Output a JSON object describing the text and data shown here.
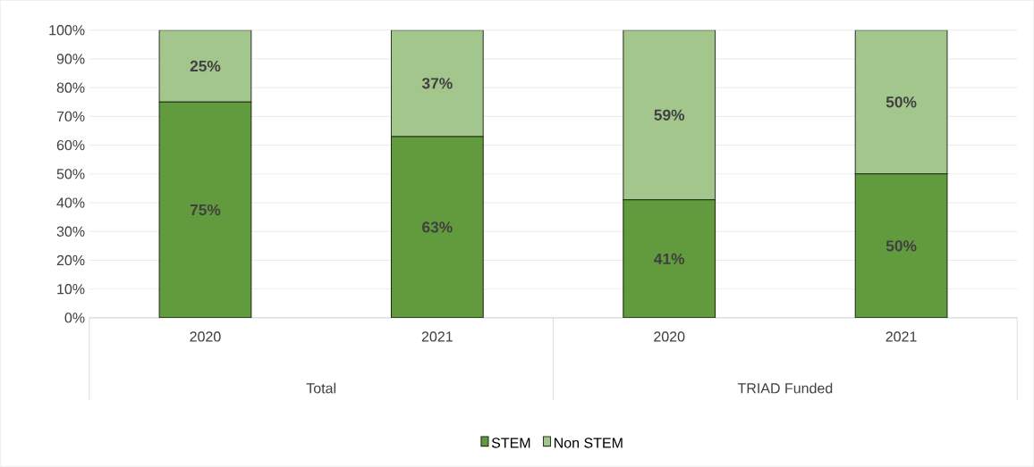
{
  "chart_data": {
    "type": "bar",
    "stacked": true,
    "categories": [
      "2020",
      "2021",
      "2020",
      "2021"
    ],
    "annotations": [
      "Total",
      "TRIAD Funded"
    ],
    "series": [
      {
        "name": "STEM",
        "color": "#629b3e",
        "values": [
          75,
          63,
          41,
          50
        ],
        "value_labels": [
          "75%",
          "63%",
          "41%",
          "50%"
        ]
      },
      {
        "name": "Non STEM",
        "color": "#a3c68d",
        "values": [
          25,
          37,
          59,
          50
        ],
        "value_labels": [
          "25%",
          "37%",
          "59%",
          "50%"
        ]
      }
    ],
    "ylim": [
      0,
      100
    ],
    "yticks": [
      {
        "value": 0,
        "label": "0%"
      },
      {
        "value": 10,
        "label": "10%"
      },
      {
        "value": 20,
        "label": "20%"
      },
      {
        "value": 30,
        "label": "30%"
      },
      {
        "value": 40,
        "label": "40%"
      },
      {
        "value": 50,
        "label": "50%"
      },
      {
        "value": 60,
        "label": "60%"
      },
      {
        "value": 70,
        "label": "70%"
      },
      {
        "value": 80,
        "label": "80%"
      },
      {
        "value": 90,
        "label": "90%"
      },
      {
        "value": 100,
        "label": "100%"
      }
    ],
    "grid": "y",
    "legend": "bottom"
  }
}
